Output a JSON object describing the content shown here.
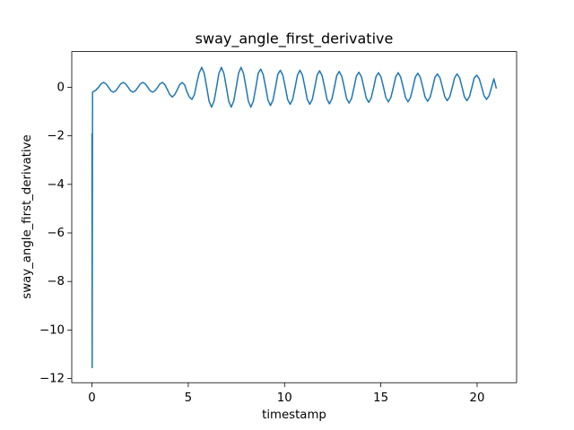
{
  "chart_data": {
    "type": "line",
    "title": "sway_angle_first_derivative",
    "xlabel": "timestamp",
    "ylabel": "sway_angle_first_derivative",
    "xlim": [
      -1.05,
      22.05
    ],
    "ylim": [
      -12.17,
      1.47
    ],
    "xticks": [
      0,
      5,
      10,
      15,
      20
    ],
    "yticks": [
      {
        "value": -12,
        "label": "−12"
      },
      {
        "value": -10,
        "label": "−10"
      },
      {
        "value": -8,
        "label": "−8"
      },
      {
        "value": -6,
        "label": "−6"
      },
      {
        "value": -4,
        "label": "−4"
      },
      {
        "value": -2,
        "label": "−2"
      },
      0
    ],
    "series": [
      {
        "color": "#1f77b4",
        "x": [
          0,
          0.01,
          0.03,
          0.2,
          0.34,
          0.47,
          0.6,
          0.73,
          0.86,
          0.98,
          1.11,
          1.24,
          1.37,
          1.49,
          1.62,
          1.75,
          1.88,
          2.0,
          2.13,
          2.26,
          2.39,
          2.51,
          2.64,
          2.77,
          2.9,
          3.02,
          3.15,
          3.28,
          3.41,
          3.53,
          3.66,
          3.79,
          3.92,
          4.04,
          4.17,
          4.3,
          4.43,
          4.55,
          4.68,
          4.81,
          4.94,
          5.06,
          5.19,
          5.32,
          5.45,
          5.57,
          5.7,
          5.83,
          5.96,
          6.08,
          6.21,
          6.34,
          6.47,
          6.59,
          6.72,
          6.85,
          6.98,
          7.1,
          7.23,
          7.36,
          7.49,
          7.61,
          7.74,
          7.87,
          8.0,
          8.12,
          8.25,
          8.38,
          8.51,
          8.63,
          8.76,
          8.89,
          9.02,
          9.14,
          9.27,
          9.4,
          9.53,
          9.65,
          9.78,
          9.91,
          10.04,
          10.16,
          10.29,
          10.42,
          10.55,
          10.67,
          10.8,
          10.93,
          11.06,
          11.18,
          11.31,
          11.44,
          11.57,
          11.69,
          11.82,
          11.95,
          12.08,
          12.2,
          12.33,
          12.46,
          12.59,
          12.71,
          12.84,
          12.97,
          13.1,
          13.22,
          13.35,
          13.48,
          13.61,
          13.73,
          13.86,
          13.99,
          14.12,
          14.24,
          14.37,
          14.5,
          14.63,
          14.75,
          14.88,
          15.01,
          15.14,
          15.26,
          15.39,
          15.52,
          15.65,
          15.77,
          15.9,
          16.03,
          16.16,
          16.28,
          16.41,
          16.54,
          16.67,
          16.79,
          16.92,
          17.05,
          17.18,
          17.3,
          17.43,
          17.56,
          17.69,
          17.81,
          17.94,
          18.07,
          18.2,
          18.32,
          18.45,
          18.58,
          18.71,
          18.83,
          18.96,
          19.09,
          19.22,
          19.34,
          19.47,
          19.6,
          19.73,
          19.85,
          19.98,
          20.11,
          20.24,
          20.36,
          20.49,
          20.62,
          20.75,
          20.87,
          21.0
        ],
        "values": [
          -1.9,
          -11.55,
          -0.2,
          -0.12,
          0,
          0.14,
          0.2,
          0.14,
          0,
          -0.14,
          -0.2,
          -0.14,
          0,
          0.14,
          0.2,
          0.14,
          0,
          -0.14,
          -0.2,
          -0.14,
          0,
          0.14,
          0.2,
          0.14,
          0,
          -0.14,
          -0.2,
          -0.14,
          0,
          0.14,
          0.2,
          0.1,
          -0.1,
          -0.3,
          -0.4,
          -0.3,
          -0.1,
          0.1,
          0.2,
          0.1,
          -0.2,
          -0.4,
          -0.5,
          -0.3,
          0.2,
          0.6,
          0.82,
          0.57,
          0,
          -0.57,
          -0.82,
          -0.57,
          0,
          0.57,
          0.82,
          0.57,
          0,
          -0.57,
          -0.82,
          -0.57,
          0,
          0.57,
          0.82,
          0.57,
          0,
          -0.57,
          -0.82,
          -0.57,
          0,
          0.57,
          0.75,
          0.53,
          0,
          -0.53,
          -0.75,
          -0.53,
          0,
          0.53,
          0.7,
          0.5,
          0,
          -0.5,
          -0.7,
          -0.5,
          0,
          0.5,
          0.7,
          0.5,
          0,
          -0.5,
          -0.7,
          -0.5,
          0,
          0.5,
          0.68,
          0.48,
          0,
          -0.48,
          -0.68,
          -0.48,
          0,
          0.48,
          0.65,
          0.46,
          0,
          -0.46,
          -0.65,
          -0.46,
          0,
          0.46,
          0.62,
          0.44,
          0,
          -0.44,
          -0.62,
          -0.44,
          0,
          0.44,
          0.6,
          0.42,
          0,
          -0.42,
          -0.6,
          -0.42,
          0,
          0.42,
          0.6,
          0.42,
          0,
          -0.42,
          -0.6,
          -0.42,
          0,
          0.42,
          0.58,
          0.41,
          0,
          -0.41,
          -0.58,
          -0.41,
          0,
          0.41,
          0.55,
          0.39,
          0,
          -0.39,
          -0.55,
          -0.39,
          0,
          0.39,
          0.55,
          0.39,
          0,
          -0.39,
          -0.55,
          -0.39,
          0,
          0.39,
          0.5,
          0.35,
          0,
          -0.35,
          -0.5,
          -0.35,
          0,
          0.35,
          -0.05
        ]
      }
    ]
  }
}
